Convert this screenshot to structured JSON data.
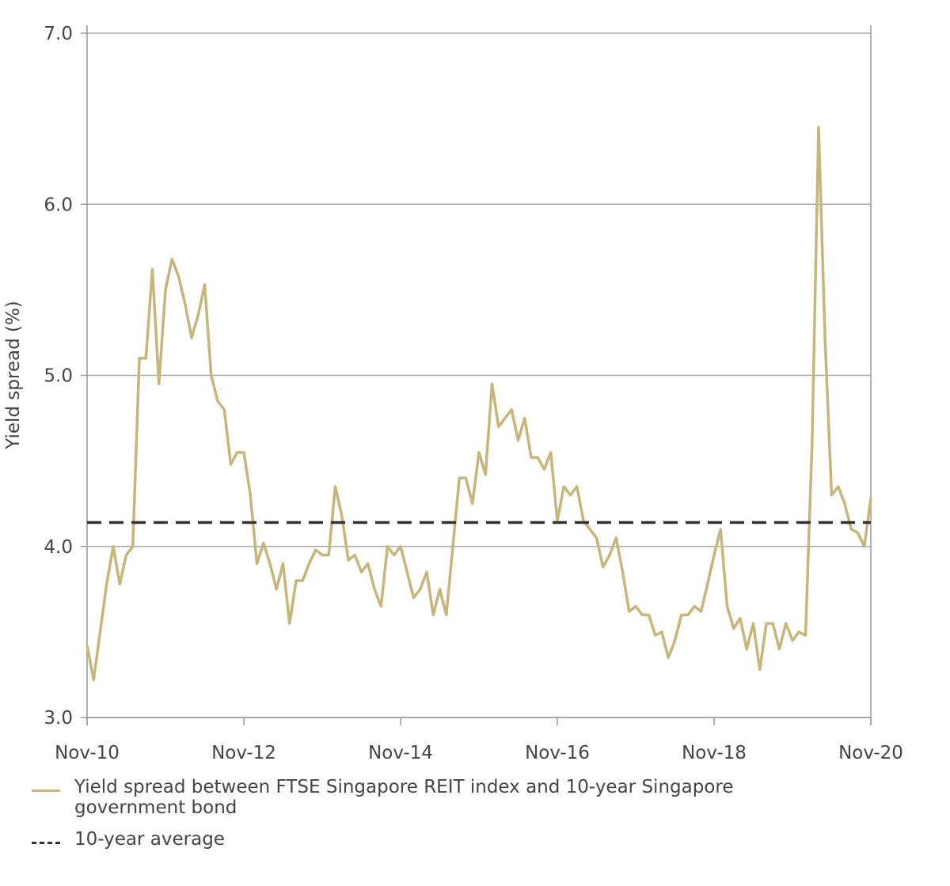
{
  "chart_data": {
    "type": "line",
    "ylabel": "Yield spread (%)",
    "ylim": [
      3,
      7
    ],
    "yticks": [
      {
        "value": 3,
        "label": "3.0"
      },
      {
        "value": 4,
        "label": "4.0"
      },
      {
        "value": 5,
        "label": "5.0"
      },
      {
        "value": 6,
        "label": "6.0"
      },
      {
        "value": 7,
        "label": "7.0"
      }
    ],
    "xticks": [
      "Nov-10",
      "Nov-12",
      "Nov-14",
      "Nov-16",
      "Nov-18",
      "Nov-20"
    ],
    "grid": true,
    "categories": [
      "Nov-10",
      "Dec-10",
      "Jan-11",
      "Feb-11",
      "Mar-11",
      "Apr-11",
      "May-11",
      "Jun-11",
      "Jul-11",
      "Aug-11",
      "Sep-11",
      "Oct-11",
      "Nov-11",
      "Dec-11",
      "Jan-12",
      "Feb-12",
      "Mar-12",
      "Apr-12",
      "May-12",
      "Jun-12",
      "Jul-12",
      "Aug-12",
      "Sep-12",
      "Oct-12",
      "Nov-12",
      "Dec-12",
      "Jan-13",
      "Feb-13",
      "Mar-13",
      "Apr-13",
      "May-13",
      "Jun-13",
      "Jul-13",
      "Aug-13",
      "Sep-13",
      "Oct-13",
      "Nov-13",
      "Dec-13",
      "Jan-14",
      "Feb-14",
      "Mar-14",
      "Apr-14",
      "May-14",
      "Jun-14",
      "Jul-14",
      "Aug-14",
      "Sep-14",
      "Oct-14",
      "Nov-14",
      "Dec-14",
      "Jan-15",
      "Feb-15",
      "Mar-15",
      "Apr-15",
      "May-15",
      "Jun-15",
      "Jul-15",
      "Aug-15",
      "Sep-15",
      "Oct-15",
      "Nov-15",
      "Dec-15",
      "Jan-16",
      "Feb-16",
      "Mar-16",
      "Apr-16",
      "May-16",
      "Jun-16",
      "Jul-16",
      "Aug-16",
      "Sep-16",
      "Oct-16",
      "Nov-16",
      "Dec-16",
      "Jan-17",
      "Feb-17",
      "Mar-17",
      "Apr-17",
      "May-17",
      "Jun-17",
      "Jul-17",
      "Aug-17",
      "Sep-17",
      "Oct-17",
      "Nov-17",
      "Dec-17",
      "Jan-18",
      "Feb-18",
      "Mar-18",
      "Apr-18",
      "May-18",
      "Jun-18",
      "Jul-18",
      "Aug-18",
      "Sep-18",
      "Oct-18",
      "Nov-18",
      "Dec-18",
      "Jan-19",
      "Feb-19",
      "Mar-19",
      "Apr-19",
      "May-19",
      "Jun-19",
      "Jul-19",
      "Aug-19",
      "Sep-19",
      "Oct-19",
      "Nov-19",
      "Dec-19",
      "Jan-20",
      "Feb-20",
      "Mar-20",
      "Apr-20",
      "May-20",
      "Jun-20",
      "Jul-20",
      "Aug-20",
      "Sep-20",
      "Oct-20",
      "Nov-20"
    ],
    "series": [
      {
        "name": "Yield spread between FTSE Singapore REIT index and 10-year Singapore government bond",
        "color": "#c6b67c",
        "values": [
          3.42,
          3.22,
          3.5,
          3.78,
          4.0,
          3.78,
          3.95,
          4.0,
          5.1,
          5.1,
          5.62,
          4.95,
          5.5,
          5.68,
          5.58,
          5.42,
          5.22,
          5.35,
          5.53,
          5.0,
          4.85,
          4.8,
          4.48,
          4.55,
          4.55,
          4.3,
          3.9,
          4.02,
          3.9,
          3.75,
          3.9,
          3.55,
          3.8,
          3.8,
          3.9,
          3.98,
          3.95,
          3.95,
          4.35,
          4.18,
          3.92,
          3.95,
          3.85,
          3.9,
          3.75,
          3.65,
          4.0,
          3.95,
          4.0,
          3.85,
          3.7,
          3.75,
          3.85,
          3.6,
          3.75,
          3.6,
          4.0,
          4.4,
          4.4,
          4.25,
          4.55,
          4.42,
          4.95,
          4.7,
          4.75,
          4.8,
          4.62,
          4.75,
          4.52,
          4.52,
          4.45,
          4.55,
          4.15,
          4.35,
          4.3,
          4.35,
          4.15,
          4.1,
          4.05,
          3.88,
          3.95,
          4.05,
          3.85,
          3.62,
          3.65,
          3.6,
          3.6,
          3.48,
          3.5,
          3.35,
          3.45,
          3.6,
          3.6,
          3.65,
          3.62,
          3.78,
          3.95,
          4.1,
          3.65,
          3.52,
          3.58,
          3.4,
          3.55,
          3.28,
          3.55,
          3.55,
          3.4,
          3.55,
          3.45,
          3.5,
          3.48,
          4.6,
          6.45,
          5.2,
          4.3,
          4.35,
          4.25,
          4.1,
          4.08,
          4.0,
          4.28
        ]
      }
    ],
    "average": {
      "name": "10-year average",
      "value": 4.14,
      "color": "#333333"
    }
  }
}
